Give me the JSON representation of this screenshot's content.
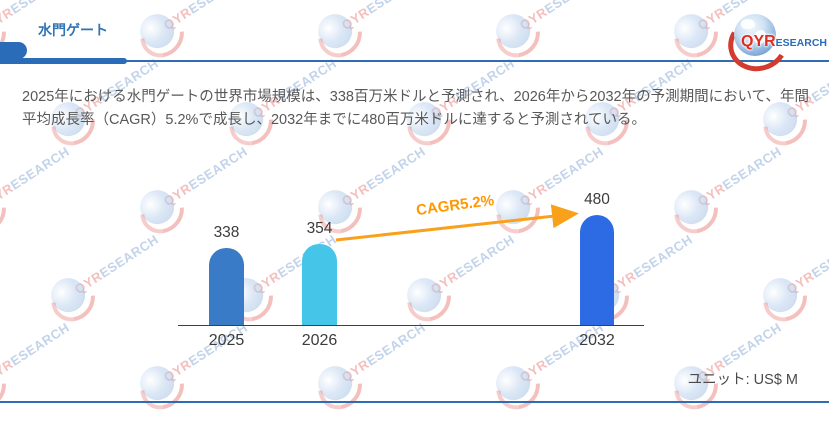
{
  "page": {
    "title": "水門ゲート"
  },
  "logo": {
    "qyr": "QYR",
    "esearch": "ESEARCH"
  },
  "summary": {
    "text": "2025年における水門ゲートの世界市場規模は、338百万米ドルと予測され、2026年から2032年の予測期間において、年間平均成長率（CAGR）5.2%で成長し、2032年までに480百万米ドルに達すると予測されている。"
  },
  "chart_data": {
    "type": "bar",
    "categories": [
      "2025",
      "2026",
      "2032"
    ],
    "values": [
      338,
      354,
      480
    ],
    "title": "",
    "xlabel": "",
    "ylabel": "",
    "ylim": [
      0,
      545
    ],
    "grid": false,
    "legend": false,
    "unit_label": "ユニット: US$ M",
    "cagr_label": "CAGR5.2%",
    "bar_colors": [
      "#3A7BC8",
      "#45C5E8",
      "#2C6BE3"
    ],
    "arrow_color": "#F9A11B",
    "axis_color": "#3f3f3f"
  },
  "watermark": {
    "qyr": "QYR",
    "esearch": "ESEARCH"
  }
}
